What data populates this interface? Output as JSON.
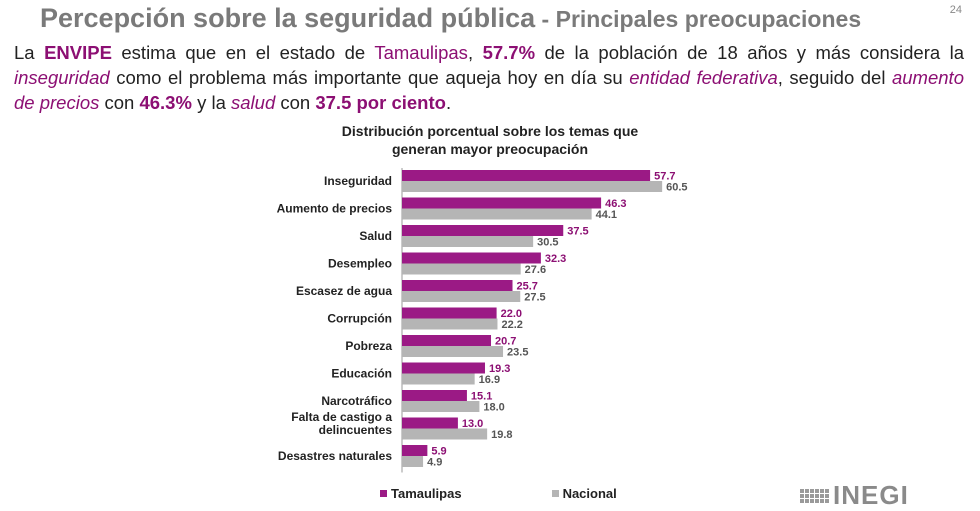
{
  "header": {
    "title_main": "Percepción sobre la seguridad pública",
    "title_sep": " - ",
    "title_sub": "Principales preocupaciones",
    "page_number": "24"
  },
  "intro": {
    "t1": "La ",
    "envipe": "ENVIPE",
    "t2": " estima que en el estado de ",
    "state": "Tamaulipas",
    "t3": ", ",
    "pct1": "57.7%",
    "t4": " de la población de 18 años y más considera la ",
    "inseguridad": "inseguridad",
    "t5": " como el problema más importante que aqueja hoy en día su ",
    "entidad": "entidad federativa",
    "t6": ", seguido del ",
    "aumento": "aumento de precios",
    "t7": " con ",
    "pct2": "46.3%",
    "t8": " y la ",
    "salud": "salud",
    "t9": " con ",
    "pct3": "37.5 por ciento",
    "t10": "."
  },
  "colors": {
    "tamaulipas": "#9b1a85",
    "nacional": "#b5b5b5",
    "accent_text": "#8c0f73"
  },
  "logo": {
    "text": "INEGI"
  },
  "chart_data": {
    "type": "bar",
    "orientation": "horizontal",
    "title": "Distribución porcentual sobre los temas que generan mayor preocupación",
    "title_lines": [
      "Distribución porcentual sobre los temas que",
      "generan mayor preocupación"
    ],
    "categories": [
      [
        "Inseguridad"
      ],
      [
        "Aumento de precios"
      ],
      [
        "Salud"
      ],
      [
        "Desempleo"
      ],
      [
        "Escasez de agua"
      ],
      [
        "Corrupción"
      ],
      [
        "Pobreza"
      ],
      [
        "Educación"
      ],
      [
        "Narcotráfico"
      ],
      [
        "Falta de castigo a",
        "delincuentes"
      ],
      [
        "Desastres naturales"
      ]
    ],
    "series": [
      {
        "name": "Tamaulipas",
        "values": [
          57.7,
          46.3,
          37.5,
          32.3,
          25.7,
          22.0,
          20.7,
          19.3,
          15.1,
          13.0,
          5.9
        ]
      },
      {
        "name": "Nacional",
        "values": [
          60.5,
          44.1,
          30.5,
          27.6,
          27.5,
          22.2,
          23.5,
          16.9,
          18.0,
          19.8,
          4.9
        ]
      }
    ],
    "xlim": [
      0,
      100
    ],
    "legend_position": "bottom",
    "grid": false
  }
}
